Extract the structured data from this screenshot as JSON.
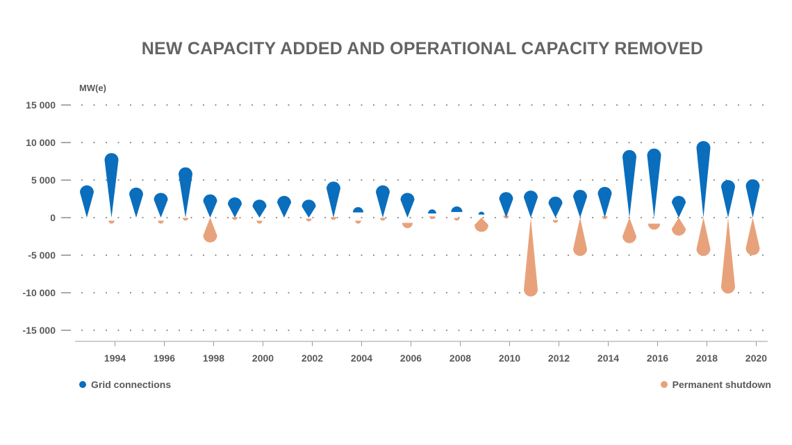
{
  "chart_data": {
    "type": "bar",
    "title": "NEW CAPACITY ADDED AND OPERATIONAL CAPACITY REMOVED",
    "ylabel": "MW(e)",
    "ylim": [
      -15000,
      15000
    ],
    "y_ticks": [
      15000,
      10000,
      5000,
      0,
      -5000,
      -10000,
      -15000
    ],
    "y_tick_labels": [
      "15 000",
      "10 000",
      "5 000",
      "0",
      "-5 000",
      "-10 000",
      "-15 000"
    ],
    "years": [
      1993,
      1994,
      1995,
      1996,
      1997,
      1998,
      1999,
      2000,
      2001,
      2002,
      2003,
      2004,
      2005,
      2006,
      2007,
      2008,
      2009,
      2010,
      2011,
      2012,
      2013,
      2014,
      2015,
      2016,
      2017,
      2018,
      2019,
      2020
    ],
    "x_tick_labels": [
      "1994",
      "1996",
      "1998",
      "2000",
      "2002",
      "2004",
      "2006",
      "2008",
      "2010",
      "2012",
      "2014",
      "2016",
      "2018",
      "2020"
    ],
    "grid": "dotted horizontal",
    "series": [
      {
        "name": "Grid connections",
        "color": "#0a6ebd",
        "values": [
          4300,
          8600,
          4000,
          3300,
          6700,
          3100,
          2700,
          2400,
          2900,
          2400,
          4800,
          1400,
          4300,
          3300,
          1100,
          1500,
          800,
          3400,
          3600,
          2800,
          3700,
          4100,
          9000,
          9200,
          2900,
          10200,
          5000,
          5100
        ]
      },
      {
        "name": "Permanent shutdown",
        "color": "#e8a27b",
        "values": [
          0,
          -800,
          0,
          -800,
          -400,
          -3300,
          -300,
          -800,
          0,
          -500,
          -300,
          -800,
          -400,
          -1400,
          -200,
          -400,
          -1900,
          -100,
          -10500,
          -700,
          -5100,
          -200,
          -3400,
          -1600,
          -2400,
          -5100,
          -10100,
          -5000
        ]
      }
    ],
    "legend": [
      "Grid connections",
      "Permanent shutdown"
    ],
    "legend_placement": "bottom"
  }
}
